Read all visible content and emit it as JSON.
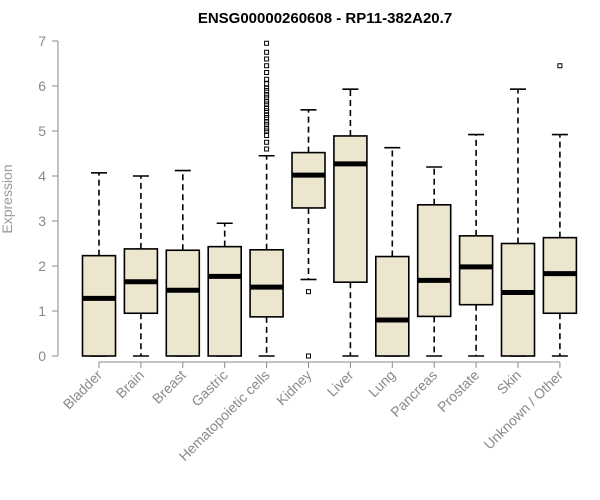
{
  "chart_data": {
    "type": "boxplot",
    "title": "ENSG00000260608 - RP11-382A20.7",
    "xlabel": "",
    "ylabel": "Expression",
    "ylim": [
      0,
      7
    ],
    "yticks": [
      0,
      1,
      2,
      3,
      4,
      5,
      6,
      7
    ],
    "box_fill": "#ede6cf",
    "categories": [
      "Bladder",
      "Brain",
      "Breast",
      "Gastric",
      "Hematopoietic cells",
      "Kidney",
      "Liver",
      "Lung",
      "Pancreas",
      "Prostate",
      "Skin",
      "Unknown / Other"
    ],
    "boxes": [
      {
        "whisker_low": 0,
        "q1": 0,
        "median": 1.28,
        "q3": 2.23,
        "whisker_high": 4.07,
        "outliers": []
      },
      {
        "whisker_low": 0,
        "q1": 0.95,
        "median": 1.65,
        "q3": 2.38,
        "whisker_high": 4.0,
        "outliers": []
      },
      {
        "whisker_low": 0,
        "q1": 0,
        "median": 1.46,
        "q3": 2.35,
        "whisker_high": 4.12,
        "outliers": []
      },
      {
        "whisker_low": 0,
        "q1": 0,
        "median": 1.77,
        "q3": 2.43,
        "whisker_high": 2.95,
        "outliers": []
      },
      {
        "whisker_low": 0,
        "q1": 0.87,
        "median": 1.53,
        "q3": 2.36,
        "whisker_high": 4.45,
        "outliers": [
          4.6,
          4.75,
          4.9,
          5.0,
          5.05,
          5.15,
          5.2,
          5.3,
          5.35,
          5.45,
          5.5,
          5.6,
          5.65,
          5.75,
          5.8,
          5.9,
          5.95,
          6.05,
          6.15,
          6.3,
          6.45,
          6.6,
          6.75,
          6.95
        ]
      },
      {
        "whisker_low": 1.7,
        "q1": 3.29,
        "median": 4.02,
        "q3": 4.52,
        "whisker_high": 5.47,
        "outliers": [
          1.43,
          0.0
        ]
      },
      {
        "whisker_low": 0,
        "q1": 1.64,
        "median": 4.27,
        "q3": 4.89,
        "whisker_high": 5.93,
        "outliers": []
      },
      {
        "whisker_low": 0,
        "q1": 0,
        "median": 0.8,
        "q3": 2.21,
        "whisker_high": 4.63,
        "outliers": []
      },
      {
        "whisker_low": 0,
        "q1": 0.88,
        "median": 1.68,
        "q3": 3.36,
        "whisker_high": 4.2,
        "outliers": []
      },
      {
        "whisker_low": 0,
        "q1": 1.14,
        "median": 1.98,
        "q3": 2.67,
        "whisker_high": 4.92,
        "outliers": []
      },
      {
        "whisker_low": 0,
        "q1": 0,
        "median": 1.41,
        "q3": 2.5,
        "whisker_high": 5.93,
        "outliers": []
      },
      {
        "whisker_low": 0,
        "q1": 0.95,
        "median": 1.83,
        "q3": 2.63,
        "whisker_high": 4.92,
        "outliers": [
          6.45
        ]
      }
    ]
  }
}
